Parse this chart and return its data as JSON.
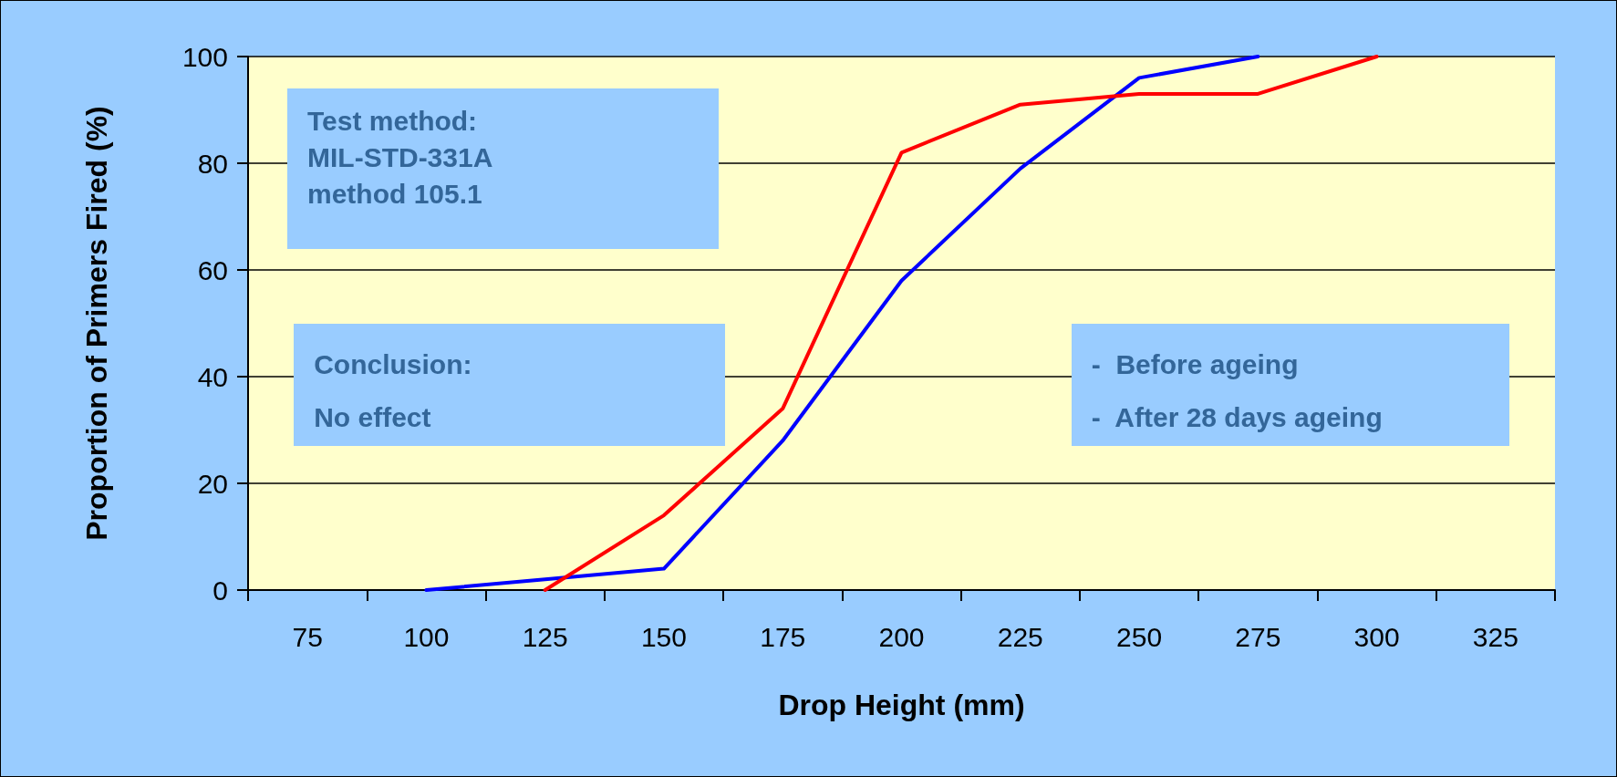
{
  "chart_data": {
    "type": "line",
    "xlabel": "Drop Height (mm)",
    "ylabel": "Proportion of Primers Fired (%)",
    "categories": [
      "75",
      "100",
      "125",
      "150",
      "175",
      "200",
      "225",
      "250",
      "275",
      "300",
      "325"
    ],
    "series": [
      {
        "color": "#0000ff",
        "values": [
          null,
          0,
          2,
          4,
          28,
          58,
          79,
          96,
          100,
          null,
          null
        ]
      },
      {
        "color": "#ff0000",
        "values": [
          null,
          null,
          0,
          14,
          34,
          82,
          91,
          93,
          93,
          100,
          null
        ]
      }
    ],
    "ylim": [
      0,
      100
    ],
    "yticks": [
      0,
      20,
      40,
      60,
      80,
      100
    ],
    "grid": "y",
    "marker": "none",
    "line_style": "solid",
    "annotations": [
      "Test method:\nMIL-STD-331A\nmethod 105.1",
      "Conclusion:\nNo effect",
      "-  Before ageing\n-  After 28 days ageing"
    ]
  }
}
